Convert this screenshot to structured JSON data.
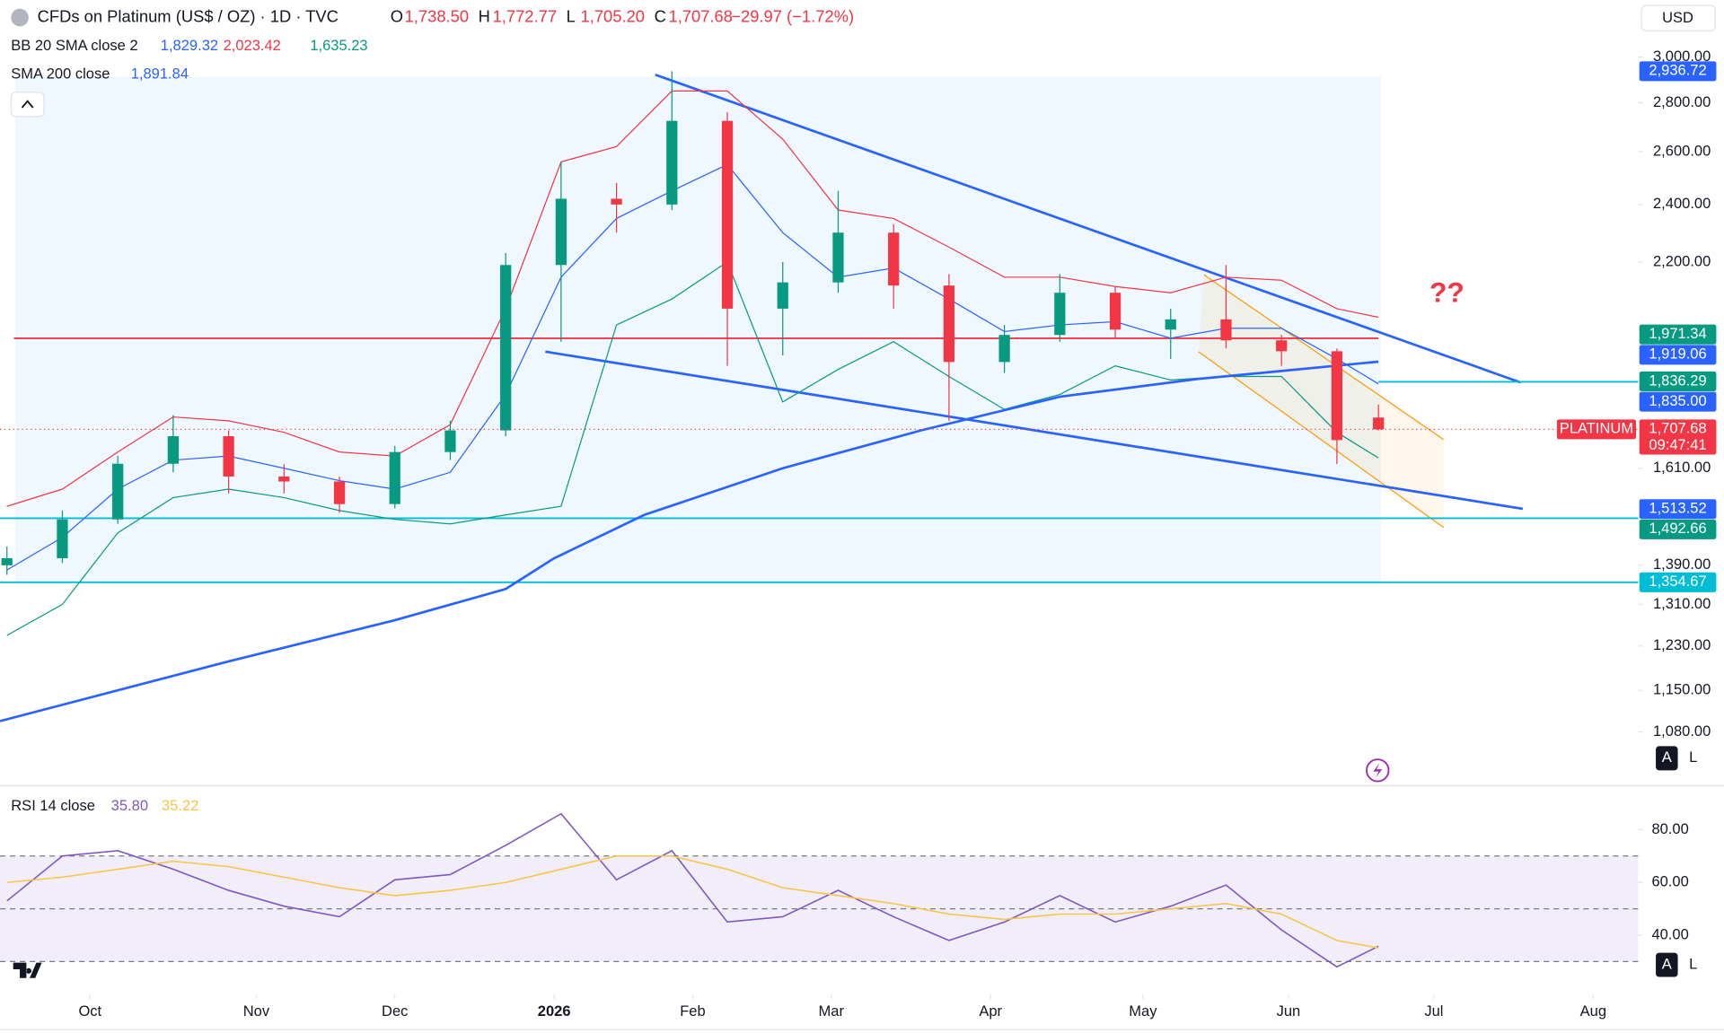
{
  "chart_data": [
    {
      "type": "candlestick",
      "title": "CFDs on Platinum (US$ / OZ) · 1D · TVC",
      "header_values": [
        [
          "O",
          "1,738.50"
        ],
        [
          "H",
          "1,772.77"
        ],
        [
          "L",
          "1,705.20"
        ],
        [
          "C",
          "1,707.68"
        ]
      ],
      "change": "−29.97 (−1.72%)",
      "indicators": [
        {
          "name": "BB 20 SMA close 2",
          "values": [
            "1,829.32",
            "2,023.42",
            "1,635.23"
          ],
          "colors": [
            "#2962ff",
            "#f23645",
            "#089981"
          ]
        },
        {
          "name": "SMA 200 close",
          "values": [
            "1,891.84"
          ],
          "colors": [
            "#2962ff"
          ]
        }
      ],
      "currency": "USD",
      "annotation": "??",
      "symbol_tag": "PLATINUM",
      "countdown": "09:47:41",
      "scale_buttons": [
        "A",
        "L"
      ],
      "up_color": "#089981",
      "down_color": "#f23645",
      "candles": {
        "x": [
          -12,
          -4,
          4,
          12,
          20,
          28,
          36,
          44,
          52,
          60,
          68,
          76,
          84,
          92,
          100,
          108,
          116,
          124,
          132,
          140,
          148,
          156,
          164,
          172,
          180,
          186
        ],
        "open": [
          1390,
          1405,
          1490,
          1621,
          1690,
          1590,
          1578,
          1525,
          1650,
          1705,
          2190,
          2421,
          2400,
          2724,
          2050,
          2133,
          2300,
          2123,
          1891,
          1970,
          2100,
          1986,
          2017,
          1954,
          1922,
          1738.5
        ],
        "high": [
          1430,
          1510,
          1640,
          1745,
          1705,
          1620,
          1590,
          1665,
          1730,
          2230,
          2560,
          2480,
          2936.72,
          2760,
          2200,
          2450,
          2330,
          2160,
          2000,
          2160,
          2120,
          2050,
          2190,
          1970,
          1930,
          1772.77
        ],
        "low": [
          1370,
          1395,
          1480,
          1600,
          1550,
          1550,
          1505,
          1515,
          1630,
          1690,
          1950,
          2300,
          2380,
          1880,
          1910,
          2100,
          2050,
          1730,
          1860,
          1950,
          1960,
          1900,
          1930,
          1880,
          1620,
          1705.2
        ],
        "close": [
          1405,
          1490,
          1621,
          1690,
          1590,
          1578,
          1525,
          1650,
          1705,
          2190,
          2421,
          2400,
          2724,
          2050,
          2133,
          2300,
          2123,
          1891,
          1970,
          2100,
          1986,
          2017,
          1954,
          1922,
          1680,
          1707.68
        ]
      },
      "bb_upper": {
        "color": "#f23645",
        "values": [
          1520,
          1560,
          1650,
          1740,
          1730,
          1700,
          1650,
          1640,
          1720,
          2050,
          2560,
          2620,
          2850,
          2850,
          2650,
          2380,
          2350,
          2250,
          2150,
          2150,
          2120,
          2100,
          2150,
          2140,
          2050,
          2023.42
        ]
      },
      "bb_basis": {
        "color": "#2962ff",
        "values": [
          1380,
          1450,
          1560,
          1630,
          1640,
          1610,
          1580,
          1560,
          1600,
          1800,
          2150,
          2350,
          2450,
          2550,
          2300,
          2150,
          2180,
          2080,
          1980,
          2000,
          2010,
          1960,
          1990,
          1990,
          1900,
          1829.32
        ]
      },
      "bb_lower": {
        "color": "#089981",
        "values": [
          1250,
          1310,
          1460,
          1540,
          1560,
          1540,
          1510,
          1490,
          1480,
          1500,
          1520,
          2000,
          2080,
          2200,
          1780,
          1870,
          1950,
          1850,
          1760,
          1800,
          1880,
          1840,
          1850,
          1850,
          1700,
          1635.23
        ]
      },
      "sma200": {
        "color": "#2962ff",
        "x": [
          -13,
          20,
          44,
          60,
          67,
          80,
          100,
          120,
          140,
          160,
          186
        ],
        "values": [
          1098,
          1202,
          1279,
          1341,
          1405,
          1500,
          1610,
          1705,
          1794,
          1843,
          1891.84
        ]
      },
      "levels": [
        {
          "value": 1960,
          "color": "#f23645",
          "x_start": -11,
          "x_end": 186
        },
        {
          "value": 1835,
          "color": "#00bcd4",
          "x_start": 186
        },
        {
          "value": 1492.66,
          "color": "#00bcd4"
        },
        {
          "value": 1354.67,
          "color": "#00bcd4"
        }
      ],
      "price_tags": [
        {
          "value": 2936.72,
          "label": "2,936.72",
          "color": "#2962ff"
        },
        {
          "value": 1971.34,
          "label": "1,971.34",
          "color": "#089981"
        },
        {
          "value": 1919.06,
          "label": "1,919.06",
          "color": "#2962ff"
        },
        {
          "value": 1836.29,
          "label": "1,836.29",
          "color": "#089981"
        },
        {
          "value": 1835,
          "label": "1,835.00",
          "color": "#2962ff"
        },
        {
          "value": 1707.68,
          "label": "1,707.68",
          "color": "#f23645"
        },
        {
          "value": 1513.52,
          "label": "1,513.52",
          "color": "#2962ff"
        },
        {
          "value": 1492.66,
          "label": "1,492.66",
          "color": "#089981"
        },
        {
          "value": 1354.67,
          "label": "1,354.67",
          "color": "#00bcd4"
        }
      ],
      "log": true,
      "ylim": [
        995.6,
        3271
      ],
      "yticks": [
        {
          "value": 3000,
          "label": "3,000.00"
        },
        {
          "value": 2800,
          "label": "2,800.00"
        },
        {
          "value": 2600,
          "label": "2,600.00"
        },
        {
          "value": 2400,
          "label": "2,400.00"
        },
        {
          "value": 2200,
          "label": "2,200.00"
        },
        {
          "value": 1610,
          "label": "1,610.00"
        },
        {
          "value": 1390,
          "label": "1,390.00"
        },
        {
          "value": 1310,
          "label": "1,310.00"
        },
        {
          "value": 1230,
          "label": "1,230.00"
        },
        {
          "value": 1150,
          "label": "1,150.00"
        },
        {
          "value": 1080,
          "label": "1,080.00"
        }
      ],
      "xlim": [
        -13,
        223.5
      ]
    },
    {
      "type": "line",
      "title": "RSI 14 close",
      "legend_values": [
        "35.80",
        "35.22"
      ],
      "x": [
        -12,
        -4,
        4,
        12,
        20,
        28,
        36,
        44,
        52,
        60,
        68,
        76,
        84,
        92,
        100,
        108,
        116,
        124,
        132,
        140,
        148,
        156,
        164,
        172,
        180,
        186
      ],
      "series": [
        {
          "color": "#7e57c2",
          "values": [
            53,
            70,
            72,
            65,
            57,
            51,
            47,
            61,
            63,
            74,
            86,
            61,
            72,
            45,
            47,
            57,
            47,
            38,
            45,
            55,
            45,
            51,
            59,
            42,
            28,
            35.8
          ]
        },
        {
          "color": "#f7c548",
          "values": [
            60,
            62,
            65,
            68,
            66,
            62,
            58,
            55,
            57,
            60,
            65,
            70,
            70,
            65,
            58,
            55,
            52,
            48,
            46,
            48,
            48,
            50,
            52,
            48,
            38,
            35.22
          ]
        }
      ],
      "levels": [
        70,
        50,
        30
      ],
      "ylim": [
        17.5,
        95.8
      ],
      "yticks": [
        {
          "value": 80,
          "label": "80.00"
        },
        {
          "value": 60,
          "label": "60.00"
        },
        {
          "value": 40,
          "label": "40.00"
        }
      ],
      "xlim": [
        -13,
        223.5
      ],
      "xticks": [
        {
          "value": 0,
          "label": "Oct"
        },
        {
          "value": 24,
          "label": "Nov"
        },
        {
          "value": 44,
          "label": "Dec"
        },
        {
          "value": 67,
          "label": "2026"
        },
        {
          "value": 87,
          "label": "Feb"
        },
        {
          "value": 107,
          "label": "Mar"
        },
        {
          "value": 130,
          "label": "Apr"
        },
        {
          "value": 152,
          "label": "May"
        },
        {
          "value": 173,
          "label": "Jun"
        },
        {
          "value": 194,
          "label": "Jul"
        },
        {
          "value": 217,
          "label": "Aug"
        }
      ]
    }
  ]
}
